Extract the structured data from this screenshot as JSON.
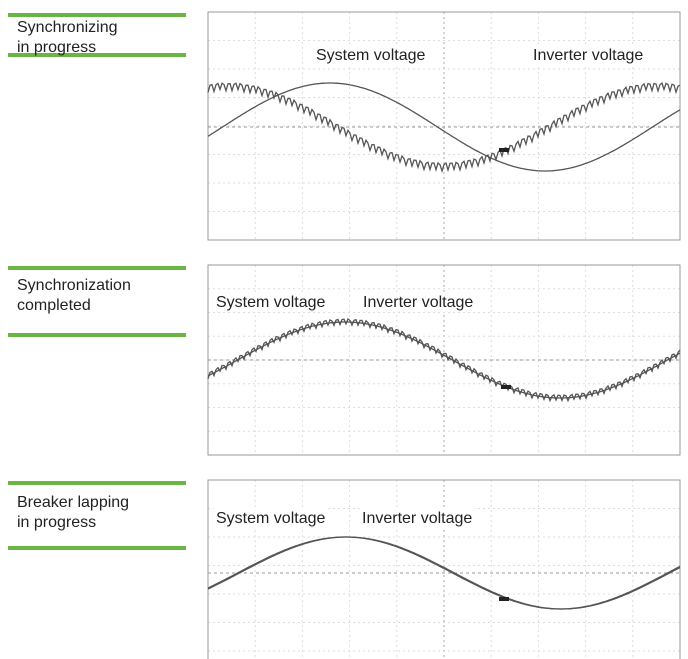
{
  "panels": [
    {
      "label": [
        "Synchronizing",
        "in progress"
      ],
      "traces": [
        "System voltage",
        "Inverter voltage"
      ]
    },
    {
      "label": [
        "Synchronization",
        "completed"
      ],
      "traces": [
        "System voltage",
        "Inverter voltage"
      ]
    },
    {
      "label": [
        "Breaker lapping",
        "in progress"
      ],
      "traces": [
        "System voltage",
        "Inverter voltage"
      ]
    }
  ]
}
